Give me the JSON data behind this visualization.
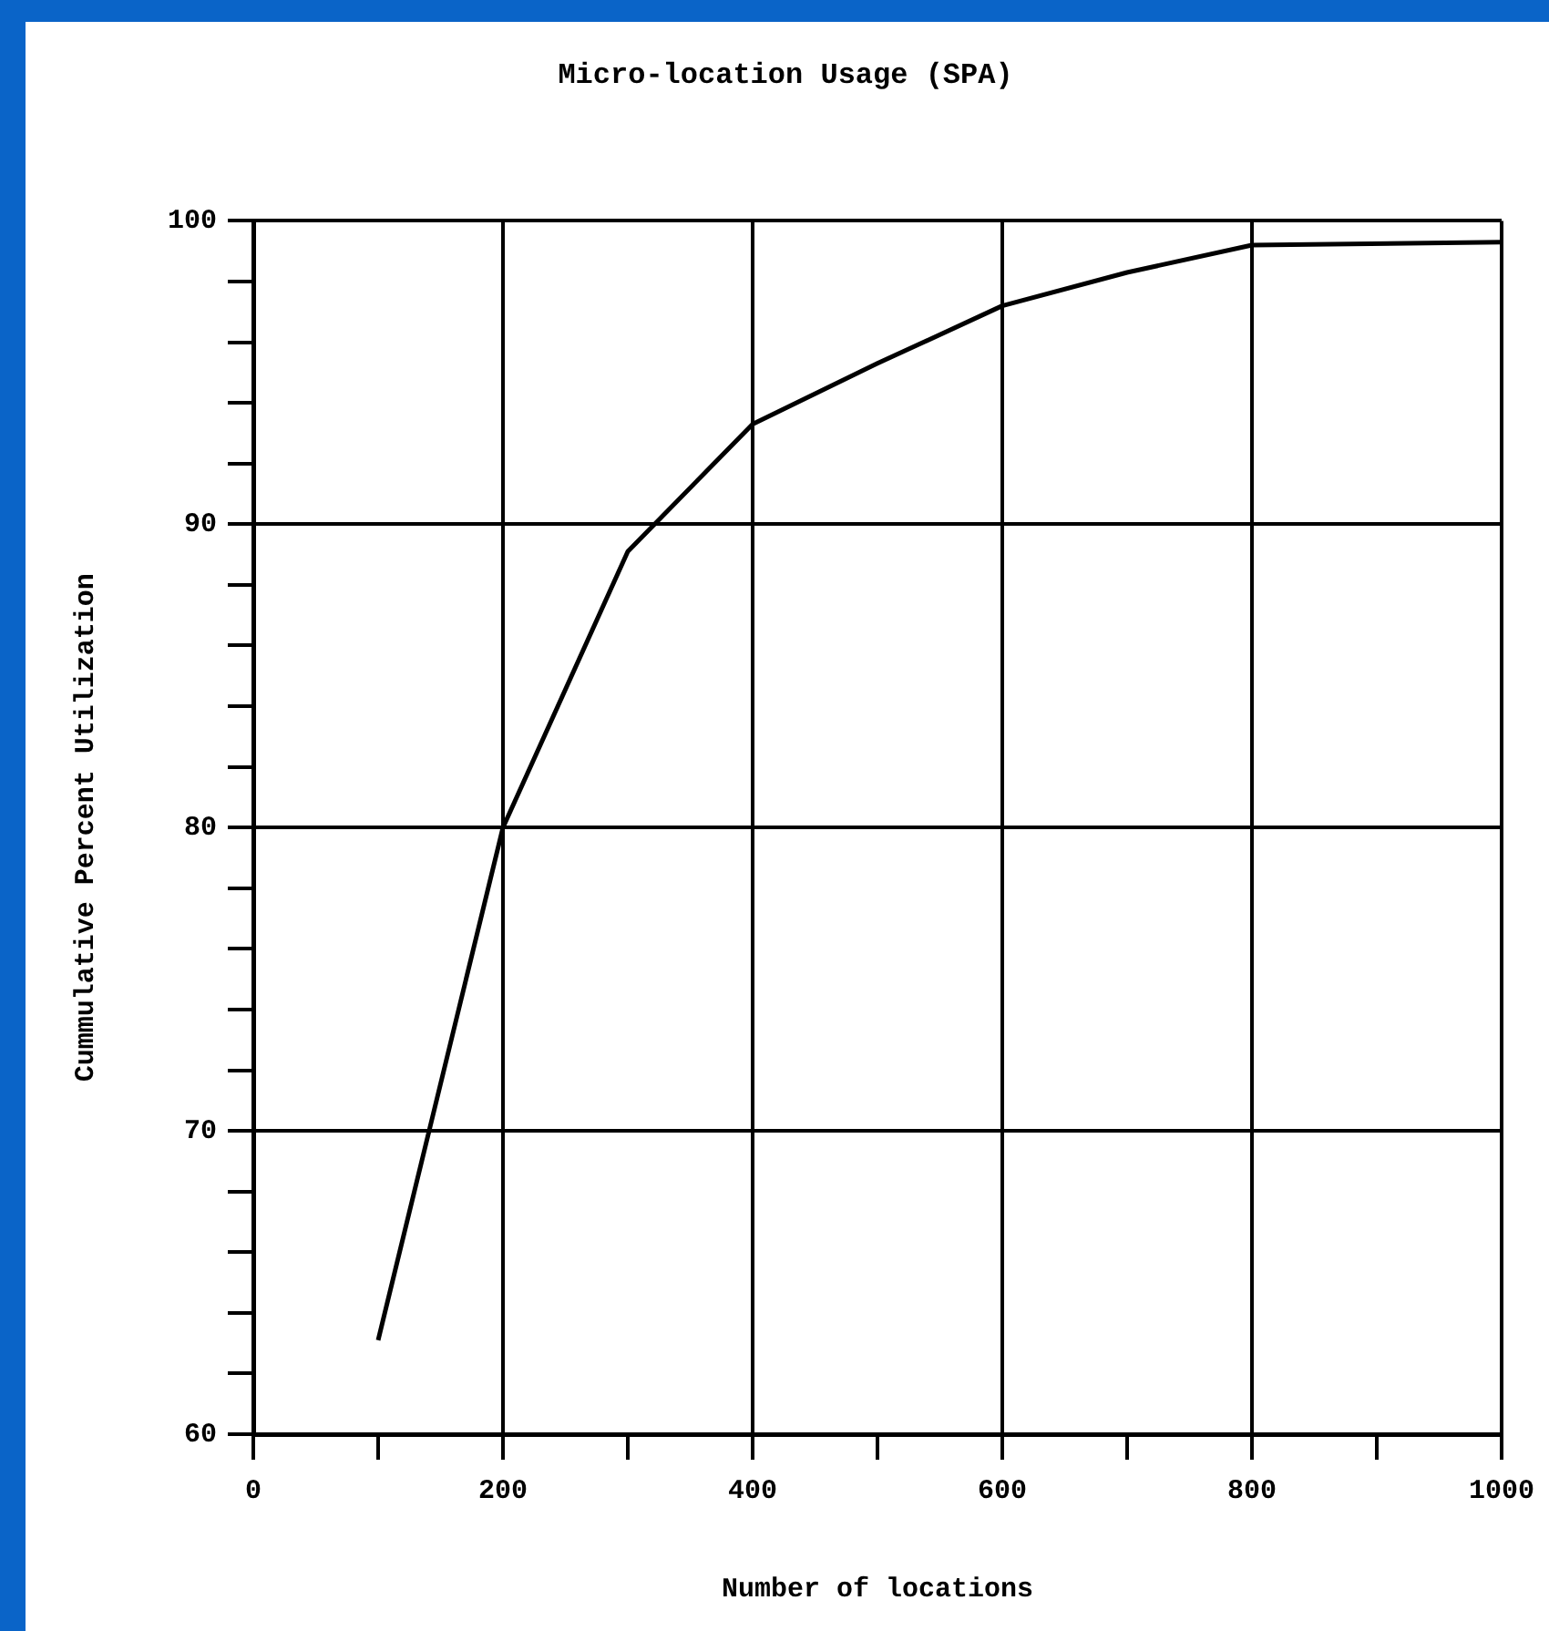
{
  "chart_data": {
    "type": "line",
    "title": "Micro-location Usage (SPA)",
    "xlabel": "Number of locations",
    "ylabel": "Cummulative Percent Utilization",
    "x": [
      100,
      200,
      300,
      400,
      500,
      600,
      700,
      800,
      1000
    ],
    "series": [
      {
        "color": "#000000",
        "values": [
          63.1,
          80,
          89.1,
          93.3,
          95.3,
          97.2,
          98.3,
          99.2,
          99.3
        ]
      }
    ],
    "xlim": [
      0,
      1000
    ],
    "ylim": [
      60,
      100
    ],
    "xticks": [
      0,
      {
        "value": 100,
        "label": null
      },
      200,
      {
        "value": 300,
        "label": null
      },
      400,
      {
        "value": 500,
        "label": null
      },
      600,
      {
        "value": 700,
        "label": null
      },
      800,
      {
        "value": 900,
        "label": null
      },
      1000
    ],
    "yticks": [
      60,
      {
        "value": 62,
        "label": null
      },
      {
        "value": 64,
        "label": null
      },
      {
        "value": 66,
        "label": null
      },
      {
        "value": 68,
        "label": null
      },
      70,
      {
        "value": 72,
        "label": null
      },
      {
        "value": 74,
        "label": null
      },
      {
        "value": 76,
        "label": null
      },
      {
        "value": 78,
        "label": null
      },
      80,
      {
        "value": 82,
        "label": null
      },
      {
        "value": 84,
        "label": null
      },
      {
        "value": 86,
        "label": null
      },
      {
        "value": 88,
        "label": null
      },
      90,
      {
        "value": 92,
        "label": null
      },
      {
        "value": 94,
        "label": null
      },
      {
        "value": 96,
        "label": null
      },
      {
        "value": 98,
        "label": null
      },
      100
    ],
    "grid": true,
    "legend": false,
    "marker": "none",
    "line_style": "solid"
  }
}
